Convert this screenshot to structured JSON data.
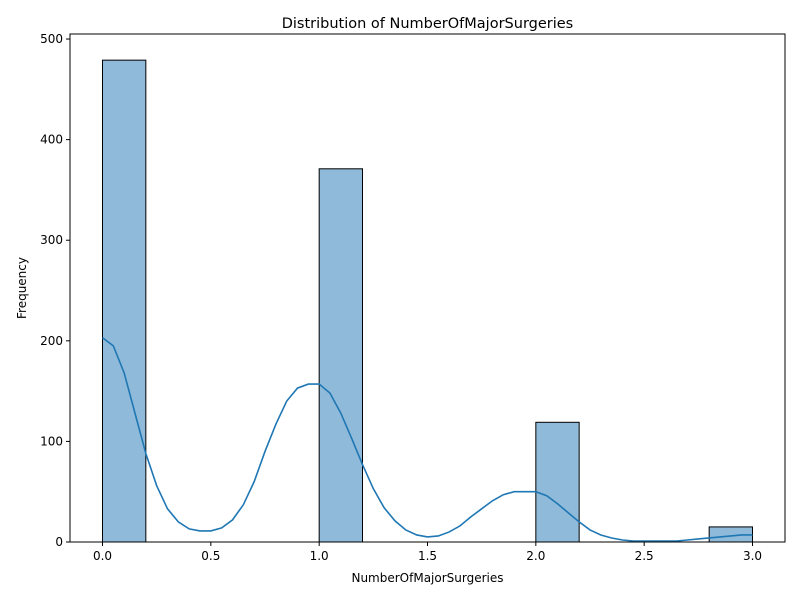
{
  "chart_data": {
    "type": "bar",
    "title": "Distribution of NumberOfMajorSurgeries",
    "xlabel": "NumberOfMajorSurgeries",
    "ylabel": "Frequency",
    "xlim": [
      -0.15,
      3.15
    ],
    "ylim": [
      0,
      505
    ],
    "x_ticks": [
      0.0,
      0.5,
      1.0,
      1.5,
      2.0,
      2.5,
      3.0
    ],
    "x_tick_labels": [
      "0.0",
      "0.5",
      "1.0",
      "1.5",
      "2.0",
      "2.5",
      "3.0"
    ],
    "y_ticks": [
      0,
      100,
      200,
      300,
      400,
      500
    ],
    "y_tick_labels": [
      "0",
      "100",
      "200",
      "300",
      "400",
      "500"
    ],
    "bars": [
      {
        "x0": 0.0,
        "x1": 0.2,
        "value": 479
      },
      {
        "x0": 1.0,
        "x1": 1.2,
        "value": 371
      },
      {
        "x0": 2.0,
        "x1": 2.2,
        "value": 119
      },
      {
        "x0": 2.8,
        "x1": 3.0,
        "value": 15
      }
    ],
    "kde": {
      "x": [
        0.0,
        0.05,
        0.1,
        0.15,
        0.2,
        0.25,
        0.3,
        0.35,
        0.4,
        0.45,
        0.5,
        0.55,
        0.6,
        0.65,
        0.7,
        0.75,
        0.8,
        0.85,
        0.9,
        0.95,
        1.0,
        1.05,
        1.1,
        1.15,
        1.2,
        1.25,
        1.3,
        1.35,
        1.4,
        1.45,
        1.5,
        1.55,
        1.6,
        1.65,
        1.7,
        1.75,
        1.8,
        1.85,
        1.9,
        1.95,
        2.0,
        2.05,
        2.1,
        2.15,
        2.2,
        2.25,
        2.3,
        2.35,
        2.4,
        2.45,
        2.5,
        2.55,
        2.6,
        2.65,
        2.7,
        2.75,
        2.8,
        2.85,
        2.9,
        2.95,
        3.0
      ],
      "y": [
        203,
        195,
        168,
        128,
        88,
        56,
        33,
        20,
        13,
        11,
        11,
        14,
        22,
        37,
        60,
        90,
        117,
        140,
        153,
        157,
        157,
        148,
        128,
        103,
        77,
        53,
        34,
        21,
        12,
        7,
        5,
        6,
        10,
        16,
        25,
        33,
        41,
        47,
        50,
        50,
        50,
        46,
        38,
        29,
        20,
        12,
        7,
        4,
        2,
        1,
        1,
        1,
        1,
        1,
        2,
        3,
        4,
        5,
        6,
        7,
        7
      ]
    },
    "bar_fill": "#8fbad9",
    "bar_edge": "#000000",
    "line_color": "#1f77b4",
    "grid": false,
    "legend": "none"
  }
}
